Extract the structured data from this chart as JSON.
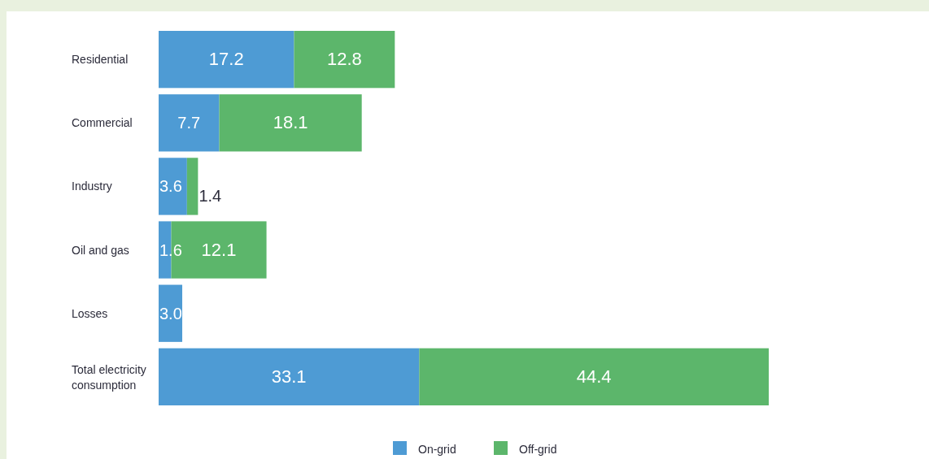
{
  "chart_data": {
    "type": "bar",
    "orientation": "horizontal",
    "stacked": true,
    "legend": "bottom",
    "categories": [
      "Residential",
      "Commercial",
      "Industry",
      "Oil and gas",
      "Losses",
      "Total electricity consumption"
    ],
    "series": [
      {
        "name": "On-grid",
        "color": "#4e9bd4",
        "values": [
          17.2,
          7.7,
          3.6,
          1.6,
          3.0,
          33.1
        ],
        "value_labels": [
          "17.2",
          "7.7",
          "3.6",
          "1.6",
          "3.0",
          "33.1"
        ]
      },
      {
        "name": "Off-grid",
        "color": "#5cb66b",
        "values": [
          12.8,
          18.1,
          1.4,
          12.1,
          null,
          44.4
        ],
        "value_labels": [
          "12.8",
          "18.1",
          "1.4",
          "12.1",
          null,
          "44.4"
        ]
      }
    ]
  }
}
